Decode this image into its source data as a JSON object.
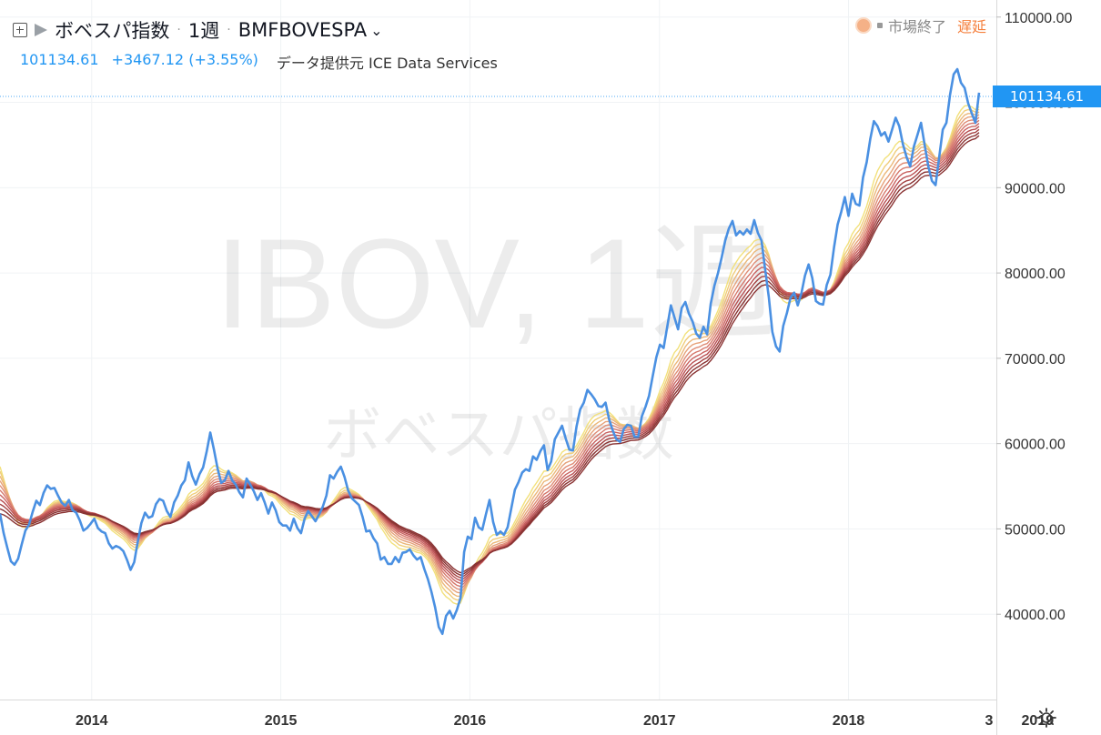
{
  "header": {
    "title": "ボベスパ指数",
    "separator": "·",
    "interval": "1週",
    "exchange": "BMFBOVESPA",
    "chevron": "⌄"
  },
  "quote": {
    "last": "101134.61",
    "change": "+3467.12",
    "change_pct": "(+3.55%)",
    "provider": "データ提供元 ICE Data Services"
  },
  "status": {
    "market": "市場終了",
    "delay": "遅延"
  },
  "price_tag": "101134.61",
  "watermark": {
    "symbol": "IBOV, 1週",
    "name": "ボベスパ指数"
  },
  "icons": {
    "add": "plus-square-icon",
    "flag": "flag-icon",
    "settings": "gear-icon"
  },
  "colors": {
    "price_line": "#4a90e2",
    "accent": "#2196f3",
    "ribbon": [
      "#f2e17c",
      "#f0cd7a",
      "#ebb87a",
      "#e6a27a",
      "#df8c75",
      "#d6776b",
      "#c96260",
      "#b94f52",
      "#a34040",
      "#8a3333"
    ],
    "delay": "#f57f3c"
  },
  "chart_data": {
    "type": "line",
    "x_start": "2013-07-08",
    "interval_days": 7,
    "ylim": [
      30000,
      112000
    ],
    "yticks": [
      "110000.00",
      "100000.00",
      "90000.00",
      "80000.00",
      "70000.00",
      "60000.00",
      "50000.00",
      "40000.00"
    ],
    "xticks": [
      "2014",
      "2015",
      "2016",
      "2017",
      "2018",
      "2019",
      "3"
    ],
    "ribbon_periods": [
      10,
      12,
      14,
      16,
      18,
      20,
      22,
      24,
      26,
      28,
      30
    ],
    "series": [
      {
        "values": [
          51800,
          49500,
          47800,
          46200,
          45800,
          46500,
          48200,
          49800,
          50500,
          52000,
          53300,
          52800,
          54200,
          55100,
          54700,
          54800,
          53900,
          53100,
          52700,
          53400,
          52200,
          51900,
          51000,
          49800,
          50100,
          50600,
          51200,
          50100,
          49700,
          49500,
          48300,
          47700,
          48000,
          47800,
          47400,
          46400,
          45200,
          46100,
          48500,
          50700,
          51900,
          51300,
          51500,
          52900,
          53500,
          53300,
          52100,
          51400,
          53100,
          53900,
          55100,
          55700,
          57800,
          56200,
          55200,
          56400,
          57200,
          59100,
          61300,
          59300,
          57100,
          55400,
          55700,
          56800,
          55700,
          55200,
          54300,
          53700,
          55900,
          55200,
          54400,
          53400,
          54200,
          53100,
          51800,
          53100,
          52200,
          50800,
          50400,
          50400,
          49800,
          51200,
          50100,
          49500,
          51200,
          52100,
          51500,
          50900,
          51700,
          52600,
          53900,
          56300,
          55900,
          56700,
          57300,
          56100,
          54500,
          53600,
          53200,
          52800,
          51400,
          49700,
          49800,
          48900,
          48300,
          46400,
          46700,
          45900,
          45900,
          46700,
          46100,
          47200,
          47300,
          47600,
          46900,
          46400,
          46700,
          45300,
          44100,
          42600,
          40800,
          38500,
          37700,
          39800,
          40400,
          39500,
          40500,
          41900,
          47300,
          49100,
          48800,
          51300,
          50200,
          49900,
          51700,
          53400,
          50800,
          49300,
          49700,
          49300,
          50200,
          52400,
          54600,
          55500,
          56600,
          57000,
          56800,
          58500,
          58100,
          59100,
          59800,
          56900,
          57900,
          60500,
          61300,
          62100,
          60600,
          59300,
          59200,
          62000,
          64000,
          64800,
          66300,
          65800,
          65200,
          64400,
          64300,
          64800,
          62800,
          61500,
          60500,
          60200,
          61700,
          62200,
          62100,
          60800,
          60800,
          63200,
          64300,
          65600,
          67900,
          70100,
          71600,
          71200,
          73700,
          76200,
          74800,
          73400,
          75900,
          76600,
          75200,
          74300,
          72900,
          72400,
          73700,
          72800,
          76400,
          78500,
          80000,
          81800,
          83800,
          85200,
          86100,
          84400,
          84900,
          84500,
          85100,
          84600,
          86200,
          84700,
          83800,
          80400,
          77200,
          73100,
          71400,
          70800,
          73800,
          75300,
          77100,
          77700,
          76200,
          77600,
          79700,
          81000,
          79400,
          76700,
          76400,
          76300,
          78600,
          79800,
          83000,
          85700,
          87200,
          88900,
          86700,
          89300,
          88100,
          87900,
          91200,
          93000,
          95700,
          97800,
          97200,
          96100,
          96500,
          95400,
          96800,
          98200,
          97200,
          95100,
          93600,
          92500,
          94800,
          96200,
          97600,
          95000,
          92500,
          90800,
          90300,
          93600,
          96800,
          97600,
          100900,
          103300,
          103900,
          102300,
          101700,
          99900,
          98700,
          97600,
          101134
        ]
      }
    ]
  }
}
